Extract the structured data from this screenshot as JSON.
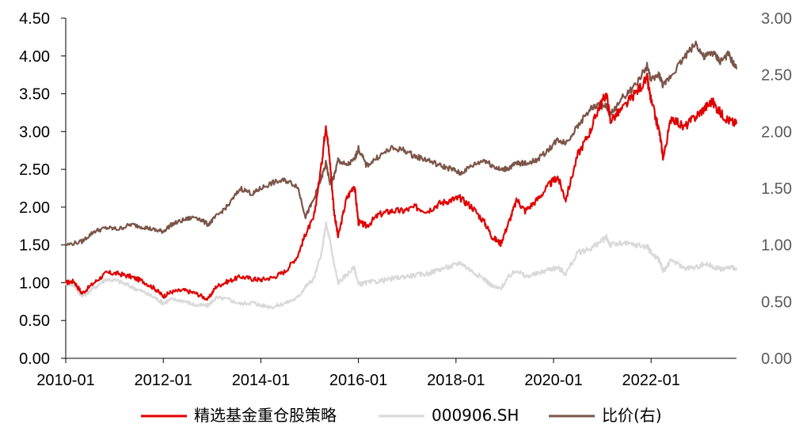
{
  "chart_data": {
    "type": "line",
    "title": "",
    "x_tick_labels": [
      "2010-01",
      "2012-01",
      "2014-01",
      "2016-01",
      "2018-01",
      "2020-01",
      "2022-01"
    ],
    "y_left": {
      "ylim": [
        0,
        4.5
      ],
      "tick_labels": [
        "0.00",
        "0.50",
        "1.00",
        "1.50",
        "2.00",
        "2.50",
        "3.00",
        "3.50",
        "4.00",
        "4.50"
      ]
    },
    "y_right": {
      "ylim": [
        0,
        3.0
      ],
      "tick_labels": [
        "0.00",
        "0.50",
        "1.00",
        "1.50",
        "2.00",
        "2.50",
        "3.00"
      ]
    },
    "grid": false,
    "legend_position": "bottom",
    "series": [
      {
        "name": "精选基金重仓股策略",
        "axis": "left",
        "color": "#e00000",
        "points": [
          [
            "2010-01",
            1.0
          ],
          [
            "2010-03",
            1.02
          ],
          [
            "2010-05",
            0.86
          ],
          [
            "2010-08",
            1.0
          ],
          [
            "2010-11",
            1.13
          ],
          [
            "2011-02",
            1.12
          ],
          [
            "2011-05",
            1.08
          ],
          [
            "2011-08",
            1.02
          ],
          [
            "2011-11",
            0.92
          ],
          [
            "2012-01",
            0.82
          ],
          [
            "2012-03",
            0.88
          ],
          [
            "2012-06",
            0.9
          ],
          [
            "2012-09",
            0.86
          ],
          [
            "2012-12",
            0.78
          ],
          [
            "2013-02",
            0.95
          ],
          [
            "2013-05",
            1.02
          ],
          [
            "2013-08",
            1.08
          ],
          [
            "2013-11",
            1.05
          ],
          [
            "2014-01",
            1.04
          ],
          [
            "2014-04",
            1.07
          ],
          [
            "2014-07",
            1.15
          ],
          [
            "2014-10",
            1.35
          ],
          [
            "2014-12",
            1.65
          ],
          [
            "2015-02",
            1.85
          ],
          [
            "2015-04",
            2.6
          ],
          [
            "2015-05",
            3.1
          ],
          [
            "2015-06",
            2.6
          ],
          [
            "2015-07",
            1.95
          ],
          [
            "2015-08",
            1.6
          ],
          [
            "2015-10",
            2.1
          ],
          [
            "2015-12",
            2.3
          ],
          [
            "2016-01",
            1.8
          ],
          [
            "2016-03",
            1.75
          ],
          [
            "2016-06",
            1.9
          ],
          [
            "2016-09",
            1.95
          ],
          [
            "2016-12",
            1.95
          ],
          [
            "2017-03",
            2.0
          ],
          [
            "2017-06",
            1.95
          ],
          [
            "2017-09",
            2.05
          ],
          [
            "2017-12",
            2.1
          ],
          [
            "2018-02",
            2.12
          ],
          [
            "2018-05",
            2.0
          ],
          [
            "2018-08",
            1.8
          ],
          [
            "2018-10",
            1.6
          ],
          [
            "2018-12",
            1.52
          ],
          [
            "2019-02",
            1.8
          ],
          [
            "2019-04",
            2.1
          ],
          [
            "2019-06",
            1.95
          ],
          [
            "2019-09",
            2.1
          ],
          [
            "2019-12",
            2.3
          ],
          [
            "2020-02",
            2.4
          ],
          [
            "2020-04",
            2.1
          ],
          [
            "2020-07",
            2.7
          ],
          [
            "2020-10",
            3.0
          ],
          [
            "2020-12",
            3.3
          ],
          [
            "2021-02",
            3.5
          ],
          [
            "2021-03",
            3.15
          ],
          [
            "2021-06",
            3.3
          ],
          [
            "2021-09",
            3.5
          ],
          [
            "2021-12",
            3.7
          ],
          [
            "2022-01",
            3.4
          ],
          [
            "2022-03",
            3.0
          ],
          [
            "2022-04",
            2.65
          ],
          [
            "2022-06",
            3.2
          ],
          [
            "2022-09",
            3.05
          ],
          [
            "2022-12",
            3.2
          ],
          [
            "2023-02",
            3.3
          ],
          [
            "2023-04",
            3.4
          ],
          [
            "2023-06",
            3.25
          ],
          [
            "2023-08",
            3.15
          ],
          [
            "2023-10",
            3.1
          ]
        ]
      },
      {
        "name": "000906.SH",
        "axis": "left",
        "color": "#d9d9d9",
        "points": [
          [
            "2010-01",
            1.0
          ],
          [
            "2010-03",
            0.97
          ],
          [
            "2010-05",
            0.82
          ],
          [
            "2010-08",
            0.93
          ],
          [
            "2010-11",
            1.05
          ],
          [
            "2011-02",
            1.02
          ],
          [
            "2011-05",
            0.95
          ],
          [
            "2011-08",
            0.88
          ],
          [
            "2011-11",
            0.8
          ],
          [
            "2012-01",
            0.73
          ],
          [
            "2012-03",
            0.78
          ],
          [
            "2012-06",
            0.76
          ],
          [
            "2012-09",
            0.7
          ],
          [
            "2012-12",
            0.7
          ],
          [
            "2013-02",
            0.8
          ],
          [
            "2013-05",
            0.78
          ],
          [
            "2013-08",
            0.72
          ],
          [
            "2013-11",
            0.74
          ],
          [
            "2014-01",
            0.7
          ],
          [
            "2014-04",
            0.68
          ],
          [
            "2014-07",
            0.73
          ],
          [
            "2014-10",
            0.8
          ],
          [
            "2014-12",
            0.95
          ],
          [
            "2015-02",
            1.05
          ],
          [
            "2015-04",
            1.4
          ],
          [
            "2015-05",
            1.78
          ],
          [
            "2015-06",
            1.55
          ],
          [
            "2015-07",
            1.25
          ],
          [
            "2015-08",
            1.0
          ],
          [
            "2015-10",
            1.1
          ],
          [
            "2015-12",
            1.2
          ],
          [
            "2016-01",
            0.98
          ],
          [
            "2016-03",
            1.0
          ],
          [
            "2016-06",
            1.02
          ],
          [
            "2016-09",
            1.05
          ],
          [
            "2016-12",
            1.08
          ],
          [
            "2017-03",
            1.1
          ],
          [
            "2017-06",
            1.12
          ],
          [
            "2017-09",
            1.18
          ],
          [
            "2017-12",
            1.22
          ],
          [
            "2018-02",
            1.27
          ],
          [
            "2018-05",
            1.15
          ],
          [
            "2018-08",
            1.05
          ],
          [
            "2018-10",
            0.95
          ],
          [
            "2018-12",
            0.92
          ],
          [
            "2019-02",
            1.08
          ],
          [
            "2019-04",
            1.17
          ],
          [
            "2019-06",
            1.08
          ],
          [
            "2019-09",
            1.12
          ],
          [
            "2019-12",
            1.18
          ],
          [
            "2020-02",
            1.2
          ],
          [
            "2020-04",
            1.12
          ],
          [
            "2020-07",
            1.4
          ],
          [
            "2020-10",
            1.45
          ],
          [
            "2020-12",
            1.52
          ],
          [
            "2021-02",
            1.6
          ],
          [
            "2021-03",
            1.5
          ],
          [
            "2021-06",
            1.52
          ],
          [
            "2021-09",
            1.5
          ],
          [
            "2021-12",
            1.48
          ],
          [
            "2022-01",
            1.4
          ],
          [
            "2022-03",
            1.3
          ],
          [
            "2022-04",
            1.15
          ],
          [
            "2022-06",
            1.3
          ],
          [
            "2022-09",
            1.2
          ],
          [
            "2022-12",
            1.2
          ],
          [
            "2023-02",
            1.25
          ],
          [
            "2023-04",
            1.22
          ],
          [
            "2023-06",
            1.18
          ],
          [
            "2023-08",
            1.2
          ],
          [
            "2023-10",
            1.2
          ]
        ]
      },
      {
        "name": "比价(右)",
        "axis": "right",
        "color": "#7b5548",
        "points": [
          [
            "2010-01",
            1.0
          ],
          [
            "2010-05",
            1.03
          ],
          [
            "2010-08",
            1.12
          ],
          [
            "2010-11",
            1.15
          ],
          [
            "2011-02",
            1.14
          ],
          [
            "2011-05",
            1.18
          ],
          [
            "2011-08",
            1.16
          ],
          [
            "2011-11",
            1.13
          ],
          [
            "2012-01",
            1.12
          ],
          [
            "2012-03",
            1.18
          ],
          [
            "2012-06",
            1.22
          ],
          [
            "2012-09",
            1.25
          ],
          [
            "2012-12",
            1.18
          ],
          [
            "2013-02",
            1.25
          ],
          [
            "2013-05",
            1.35
          ],
          [
            "2013-08",
            1.5
          ],
          [
            "2013-11",
            1.45
          ],
          [
            "2014-01",
            1.5
          ],
          [
            "2014-04",
            1.55
          ],
          [
            "2014-07",
            1.57
          ],
          [
            "2014-10",
            1.52
          ],
          [
            "2014-12",
            1.25
          ],
          [
            "2015-02",
            1.4
          ],
          [
            "2015-04",
            1.6
          ],
          [
            "2015-05",
            1.72
          ],
          [
            "2015-06",
            1.55
          ],
          [
            "2015-07",
            1.6
          ],
          [
            "2015-08",
            1.75
          ],
          [
            "2015-10",
            1.7
          ],
          [
            "2015-12",
            1.75
          ],
          [
            "2016-01",
            1.85
          ],
          [
            "2016-03",
            1.7
          ],
          [
            "2016-06",
            1.78
          ],
          [
            "2016-09",
            1.85
          ],
          [
            "2016-12",
            1.84
          ],
          [
            "2017-03",
            1.78
          ],
          [
            "2017-06",
            1.75
          ],
          [
            "2017-09",
            1.7
          ],
          [
            "2017-12",
            1.67
          ],
          [
            "2018-02",
            1.63
          ],
          [
            "2018-05",
            1.7
          ],
          [
            "2018-08",
            1.75
          ],
          [
            "2018-10",
            1.7
          ],
          [
            "2018-12",
            1.66
          ],
          [
            "2019-02",
            1.68
          ],
          [
            "2019-04",
            1.72
          ],
          [
            "2019-06",
            1.72
          ],
          [
            "2019-09",
            1.75
          ],
          [
            "2019-12",
            1.85
          ],
          [
            "2020-02",
            1.93
          ],
          [
            "2020-04",
            1.9
          ],
          [
            "2020-07",
            2.05
          ],
          [
            "2020-10",
            2.2
          ],
          [
            "2020-12",
            2.23
          ],
          [
            "2021-02",
            2.22
          ],
          [
            "2021-03",
            2.15
          ],
          [
            "2021-06",
            2.3
          ],
          [
            "2021-09",
            2.4
          ],
          [
            "2021-12",
            2.58
          ],
          [
            "2022-01",
            2.45
          ],
          [
            "2022-03",
            2.5
          ],
          [
            "2022-04",
            2.4
          ],
          [
            "2022-06",
            2.5
          ],
          [
            "2022-09",
            2.65
          ],
          [
            "2022-12",
            2.78
          ],
          [
            "2023-02",
            2.65
          ],
          [
            "2023-04",
            2.7
          ],
          [
            "2023-06",
            2.62
          ],
          [
            "2023-08",
            2.68
          ],
          [
            "2023-10",
            2.55
          ]
        ]
      }
    ]
  }
}
